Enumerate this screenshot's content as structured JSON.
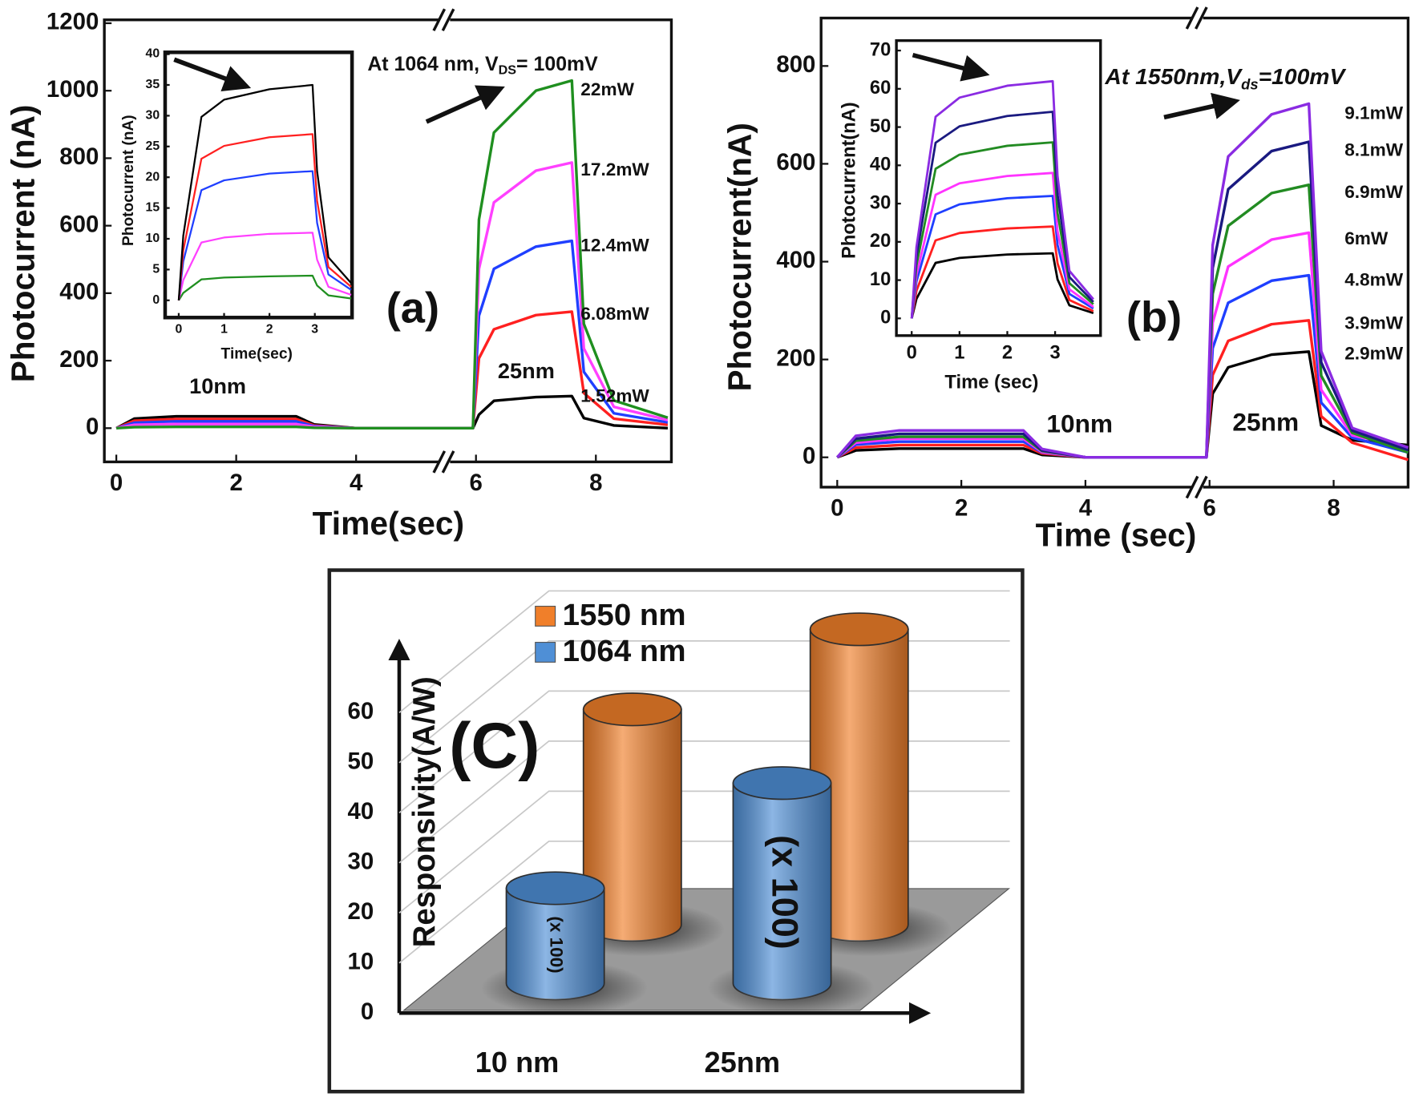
{
  "chart_data": [
    {
      "type": "line",
      "panel_label": "(a)",
      "ylabel": "Photocurrent (nA)",
      "xlabel": "Time(sec)",
      "annotation": {
        "text": "At 1064 nm, V",
        "sub": "DS",
        "tail": "= 100mV"
      },
      "region_labels": [
        "10nm",
        "25nm"
      ],
      "x": [
        0,
        0.3,
        1,
        3,
        3.3,
        4,
        5.95,
        6.05,
        6.3,
        7,
        7.6,
        7.8,
        8.3,
        9.2
      ],
      "xlim": [
        -0.2,
        9.26
      ],
      "ylim": [
        -100,
        1210
      ],
      "xticks": [
        0,
        2,
        4,
        6,
        8
      ],
      "yticks": [
        0,
        200,
        400,
        600,
        800,
        1000,
        1200
      ],
      "series": [
        {
          "name": "22mW",
          "color": "#1f8f1f",
          "values": [
            0,
            3,
            4,
            4,
            1,
            0,
            0,
            618,
            876,
            1000,
            1030,
            309,
            82,
            31
          ]
        },
        {
          "name": "17.2mW",
          "color": "#ff40ff",
          "values": [
            0,
            10,
            12,
            12,
            4,
            0,
            0,
            472,
            669,
            763,
            787,
            236,
            63,
            24
          ]
        },
        {
          "name": "12.4mW",
          "color": "#1f3fff",
          "values": [
            0,
            16,
            20,
            20,
            6,
            0,
            0,
            333,
            472,
            538,
            555,
            167,
            44,
            17
          ]
        },
        {
          "name": "6.08mW",
          "color": "#ff2020",
          "values": [
            0,
            22,
            27,
            27,
            8,
            0,
            0,
            207,
            293,
            335,
            345,
            104,
            28,
            10
          ]
        },
        {
          "name": "1.52mW",
          "color": "#000000",
          "values": [
            0,
            28,
            35,
            35,
            11,
            0,
            0,
            40,
            81,
            92,
            95,
            30,
            8,
            0
          ]
        }
      ],
      "inset": {
        "type": "line",
        "ylabel": "Photocurrent (nA)",
        "xlabel": "Time(sec)",
        "x": [
          0,
          0.1,
          0.5,
          1,
          2,
          2.95,
          3.05,
          3.3,
          3.8
        ],
        "xlim": [
          -0.3,
          3.82
        ],
        "ylim": [
          -2.8,
          40.3
        ],
        "xticks": [
          0,
          1,
          2,
          3
        ],
        "yticks": [
          0,
          5,
          10,
          15,
          20,
          25,
          30,
          35,
          40
        ],
        "series": [
          {
            "color": "#000000",
            "values": [
              0,
              10.5,
              29.8,
              32.6,
              34.3,
              35,
              21,
              7,
              2.8
            ]
          },
          {
            "color": "#ff2020",
            "values": [
              0,
              8.1,
              23,
              25.1,
              26.5,
              27,
              16.2,
              5.4,
              2.2
            ]
          },
          {
            "color": "#1f3fff",
            "values": [
              0,
              6.3,
              17.9,
              19.5,
              20.6,
              21,
              12.6,
              4.2,
              1.7
            ]
          },
          {
            "color": "#ff40ff",
            "values": [
              0,
              3.3,
              9.4,
              10.2,
              10.8,
              11,
              6.6,
              2.2,
              0.9
            ]
          },
          {
            "color": "#1f8f1f",
            "values": [
              0,
              1.2,
              3.4,
              3.7,
              3.9,
              4,
              2.4,
              0.8,
              0.3
            ]
          }
        ]
      }
    },
    {
      "type": "line",
      "panel_label": "(b)",
      "ylabel": "Photocurrent(nA)",
      "xlabel": "Time (sec)",
      "annotation": {
        "text": "At 1550nm,V",
        "sub": "ds",
        "tail": "=100mV"
      },
      "region_labels": [
        "10nm",
        "25nm"
      ],
      "x": [
        0,
        0.3,
        1,
        3,
        3.3,
        4,
        5.95,
        6.05,
        6.3,
        7,
        7.6,
        7.8,
        8.3,
        9.2
      ],
      "xlim": [
        -0.26,
        9.2
      ],
      "ylim": [
        -61,
        898
      ],
      "xticks": [
        0,
        2,
        4,
        6,
        8
      ],
      "yticks": [
        0,
        200,
        400,
        600,
        800
      ],
      "series": [
        {
          "name": "9.1mW",
          "color": "#8a2be2",
          "values": [
            0,
            44,
            55,
            55,
            17,
            0,
            0,
            434,
            615,
            701,
            723,
            217,
            60,
            20
          ]
        },
        {
          "name": "8.1mW",
          "color": "#1a1a80",
          "values": [
            0,
            38,
            48,
            48,
            14,
            0,
            0,
            387,
            548,
            626,
            645,
            194,
            55,
            15
          ]
        },
        {
          "name": "6.9mW",
          "color": "#228b22",
          "values": [
            0,
            34,
            42,
            42,
            13,
            0,
            0,
            334,
            473,
            540,
            557,
            167,
            50,
            10
          ]
        },
        {
          "name": "6mW",
          "color": "#ff33ff",
          "values": [
            0,
            30,
            38,
            38,
            11,
            0,
            0,
            275,
            390,
            445,
            459,
            138,
            45,
            20
          ]
        },
        {
          "name": "4.8mW",
          "color": "#1f3fff",
          "values": [
            0,
            26,
            32,
            32,
            10,
            0,
            0,
            223,
            316,
            361,
            372,
            112,
            40,
            10
          ]
        },
        {
          "name": "3.9mW",
          "color": "#ff2020",
          "values": [
            0,
            20,
            25,
            25,
            8,
            0,
            0,
            168,
            238,
            272,
            280,
            84,
            30,
            -5
          ]
        },
        {
          "name": "2.9mW",
          "color": "#000000",
          "values": [
            0,
            14,
            18,
            18,
            5,
            0,
            0,
            130,
            184,
            210,
            216,
            65,
            35,
            25
          ]
        }
      ],
      "inset": {
        "type": "line",
        "ylabel": "Photocurrent(nA)",
        "xlabel": "Time (sec)",
        "x": [
          0,
          0.1,
          0.5,
          1,
          2,
          2.95,
          3.05,
          3.3,
          3.8
        ],
        "xlim": [
          -0.32,
          3.95
        ],
        "ylim": [
          -4.5,
          72.6
        ],
        "xticks": [
          0,
          1,
          2,
          3
        ],
        "yticks": [
          0,
          10,
          20,
          30,
          40,
          50,
          60,
          70
        ],
        "series": [
          {
            "color": "#8a2be2",
            "values": [
              0,
              18.6,
              52.7,
              57.7,
              60.8,
              62,
              37.2,
              12.4,
              5
            ]
          },
          {
            "color": "#1a1a80",
            "values": [
              0,
              16.2,
              45.9,
              50.2,
              52.9,
              54,
              32.4,
              10.8,
              4.3
            ]
          },
          {
            "color": "#228b22",
            "values": [
              0,
              13.8,
              39.1,
              42.8,
              45.1,
              46,
              27.6,
              9.2,
              3.7
            ]
          },
          {
            "color": "#ff33ff",
            "values": [
              0,
              11.4,
              32.3,
              35.3,
              37.2,
              38,
              22.8,
              7.6,
              3
            ]
          },
          {
            "color": "#1f3fff",
            "values": [
              0,
              9.6,
              27.2,
              29.8,
              31.4,
              32,
              19.2,
              6.4,
              2.6
            ]
          },
          {
            "color": "#ff2020",
            "values": [
              0,
              7.2,
              20.4,
              22.3,
              23.5,
              24,
              14.4,
              4.8,
              1.9
            ]
          },
          {
            "color": "#000000",
            "values": [
              0,
              5.1,
              14.5,
              15.8,
              16.7,
              17,
              10.2,
              3.4,
              1.4
            ]
          }
        ]
      }
    },
    {
      "type": "bar",
      "panel_label": "(C)",
      "ylabel": "Responsivity(A/W)",
      "categories": [
        "10 nm",
        "25nm"
      ],
      "series": [
        {
          "name": "1550 nm",
          "color": "#f07f2a",
          "values": [
            43,
            59
          ]
        },
        {
          "name": "1064 nm",
          "color": "#4f8fd6",
          "values": [
            19,
            40
          ]
        }
      ],
      "bar_annotations": [
        "(x 100)",
        "(x 100)"
      ],
      "ylim": [
        0,
        60
      ],
      "yticks": [
        0,
        10,
        20,
        30,
        40,
        50,
        60
      ]
    }
  ]
}
